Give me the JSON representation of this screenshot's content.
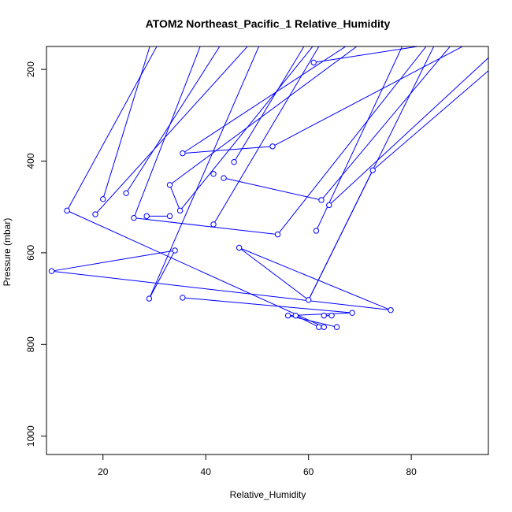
{
  "chart_data": {
    "type": "line",
    "title": "ATOM2 Northeast_Pacific_1 Relative_Humidity",
    "xlabel": "Relative_Humidity",
    "ylabel": "Pressure (mbar)",
    "xlim": [
      9,
      95
    ],
    "ylim": [
      1040,
      150
    ],
    "y_inverted": true,
    "x_ticks": [
      20,
      40,
      60,
      80
    ],
    "y_ticks": [
      200,
      400,
      600,
      800,
      1000
    ],
    "series": [
      {
        "color": "#0000ff",
        "marker": "open-circle",
        "points_visible": [
          [
            61,
            185
          ],
          [
            53,
            368
          ],
          [
            35.5,
            383
          ],
          [
            45.5,
            402
          ],
          [
            72.5,
            420
          ],
          [
            41.5,
            428
          ],
          [
            43.5,
            437
          ],
          [
            33,
            452
          ],
          [
            24.5,
            470
          ],
          [
            20,
            483
          ],
          [
            62.5,
            485
          ],
          [
            64,
            496
          ],
          [
            35,
            508
          ],
          [
            13,
            508
          ],
          [
            18.5,
            516
          ],
          [
            28.5,
            520
          ],
          [
            33,
            520
          ],
          [
            26,
            524
          ],
          [
            41.5,
            538
          ],
          [
            61.5,
            552
          ],
          [
            54,
            560
          ],
          [
            34,
            595
          ],
          [
            46.5,
            589
          ],
          [
            10,
            640
          ],
          [
            29,
            700
          ],
          [
            35.5,
            698
          ],
          [
            60,
            703
          ],
          [
            76,
            725
          ],
          [
            68.5,
            731
          ],
          [
            56,
            737
          ],
          [
            57.5,
            737
          ],
          [
            63,
            737
          ],
          [
            64.5,
            737
          ],
          [
            62,
            762
          ],
          [
            63,
            762
          ],
          [
            65.5,
            762
          ]
        ],
        "segments_to_top": [
          [
            20,
            483
          ],
          [
            13,
            508
          ],
          [
            35,
            508
          ],
          [
            41.5,
            538
          ],
          [
            54,
            560
          ],
          [
            53,
            368
          ],
          [
            35.5,
            383
          ],
          [
            45.5,
            402
          ],
          [
            61,
            185
          ],
          [
            61.5,
            552
          ],
          [
            62.5,
            485
          ],
          [
            64,
            496
          ],
          [
            72.5,
            420
          ],
          [
            33,
            452
          ],
          [
            24.5,
            470
          ],
          [
            26,
            524
          ],
          [
            29,
            700
          ],
          [
            18.5,
            516
          ],
          [
            60,
            703
          ]
        ],
        "inner_segments": [
          [
            [
              35.5,
              383
            ],
            [
              53,
              368
            ]
          ],
          [
            [
              43.5,
              437
            ],
            [
              62.5,
              485
            ]
          ],
          [
            [
              13,
              508
            ],
            [
              63,
              762
            ]
          ],
          [
            [
              26,
              524
            ],
            [
              54,
              560
            ]
          ],
          [
            [
              28.5,
              520
            ],
            [
              33,
              520
            ]
          ],
          [
            [
              34,
              595
            ],
            [
              10,
              640
            ]
          ],
          [
            [
              10,
              640
            ],
            [
              76,
              725
            ]
          ],
          [
            [
              76,
              725
            ],
            [
              46.5,
              589
            ]
          ],
          [
            [
              46.5,
              589
            ],
            [
              60,
              703
            ]
          ],
          [
            [
              60,
              703
            ],
            [
              72.5,
              420
            ]
          ],
          [
            [
              35.5,
              698
            ],
            [
              68.5,
              731
            ]
          ],
          [
            [
              68.5,
              731
            ],
            [
              56,
              737
            ]
          ],
          [
            [
              56,
              737
            ],
            [
              65.5,
              762
            ]
          ],
          [
            [
              57.5,
              737
            ],
            [
              62,
              762
            ]
          ],
          [
            [
              63,
              737
            ],
            [
              64.5,
              737
            ]
          ],
          [
            [
              62,
              762
            ],
            [
              63,
              762
            ]
          ],
          [
            [
              33,
              452
            ],
            [
              35,
              508
            ]
          ],
          [
            [
              29,
              700
            ],
            [
              34,
              595
            ]
          ]
        ]
      }
    ]
  }
}
